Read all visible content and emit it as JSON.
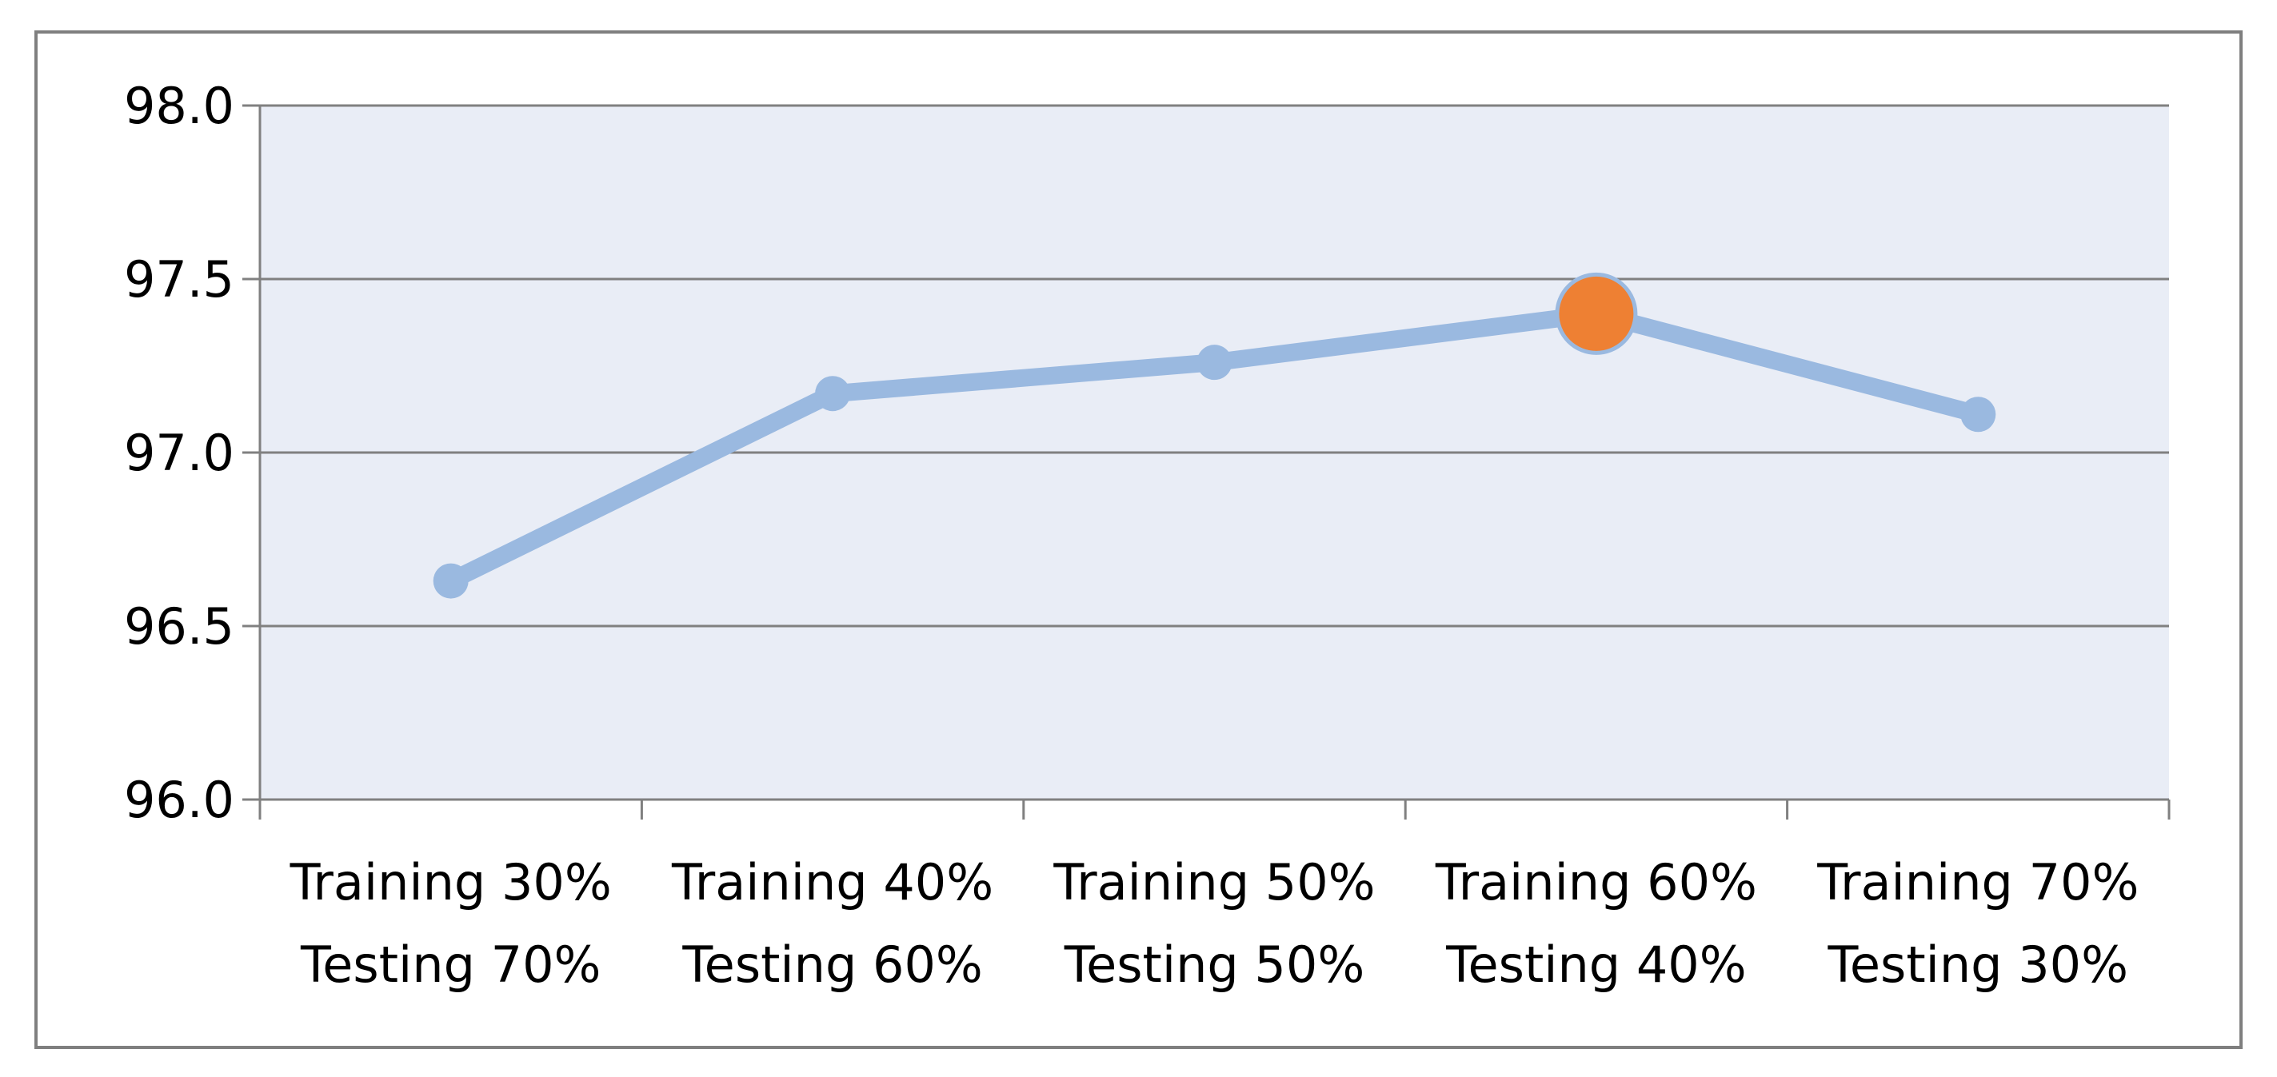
{
  "chart_data": {
    "type": "line",
    "categories": [
      [
        "Training 30%",
        "Testing 70%"
      ],
      [
        "Training 40%",
        "Testing 60%"
      ],
      [
        "Training 50%",
        "Testing 50%"
      ],
      [
        "Training 60%",
        "Testing 40%"
      ],
      [
        "Training 70%",
        "Testing 30%"
      ]
    ],
    "series": [
      {
        "values": [
          96.63,
          97.17,
          97.26,
          97.4,
          97.11
        ]
      }
    ],
    "highlight_index": 3,
    "ylim": [
      96.0,
      98.0
    ],
    "yticks": [
      "96.0",
      "96.5",
      "97.0",
      "97.5",
      "98.0"
    ],
    "ytick_values": [
      96.0,
      96.5,
      97.0,
      97.5,
      98.0
    ],
    "grid": true,
    "title": "",
    "xlabel": "",
    "ylabel": "",
    "colors": {
      "plot_background": "#e9edf6",
      "line": "#9ab9e0",
      "marker": "#9ab9e0",
      "highlight_marker": "#ee8033",
      "gridline": "#808080",
      "frame": "#7f7f7f"
    }
  }
}
